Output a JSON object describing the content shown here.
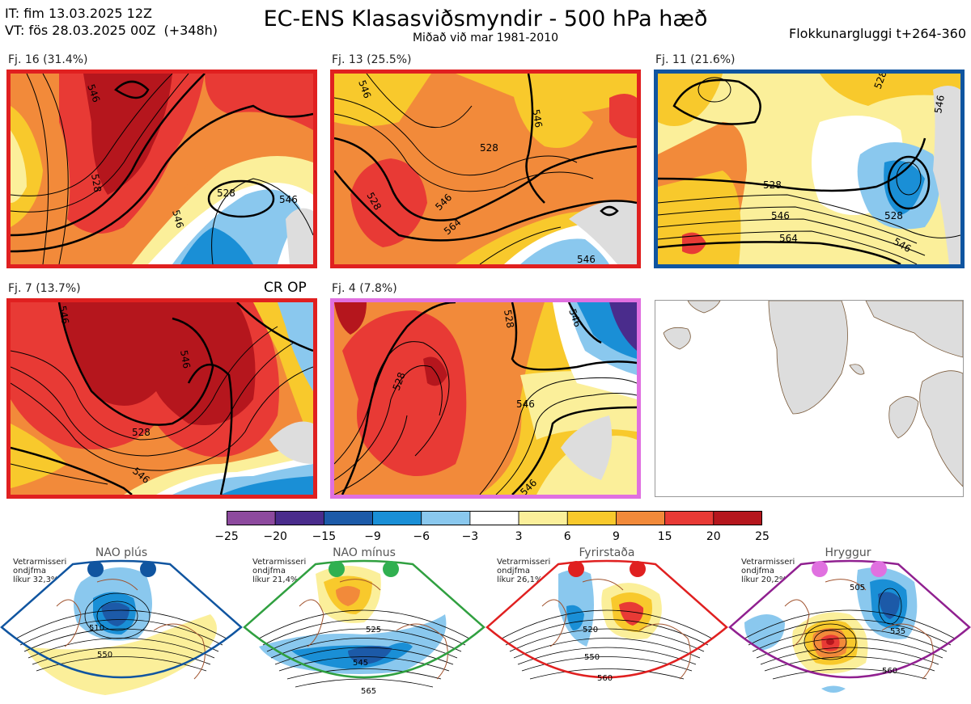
{
  "header": {
    "it_line": "IT: fim 13.03.2025 12Z",
    "vt_line": "VT: fös 28.03.2025 00Z  (+348h)",
    "title": "EC-ENS Klasasviðsmyndir - 500 hPa hæð",
    "subtitle": "Miðað við mar 1981-2010",
    "window": "Flokkunargluggi t+264-360"
  },
  "clusters": [
    {
      "label": "Fj. 16 (31.4%)",
      "border": "#e02020",
      "contours": [
        "546",
        "528",
        "546",
        "528",
        "546"
      ]
    },
    {
      "label": "Fj. 13 (25.5%)",
      "border": "#e02020",
      "contours": [
        "546",
        "528",
        "528",
        "546",
        "564",
        "546",
        "546"
      ]
    },
    {
      "label": "Fj. 11 (21.6%)",
      "border": "#1055a0",
      "contours": [
        "528",
        "528",
        "546",
        "564",
        "528",
        "546",
        "546"
      ]
    },
    {
      "label": "Fj. 7 (13.7%)",
      "border": "#e02020",
      "contours": [
        "546",
        "528",
        "546",
        "546"
      ]
    },
    {
      "label": "Fj. 4 (7.8%)",
      "border": "#e060e0",
      "contours": [
        "528",
        "528",
        "546",
        "546",
        "546"
      ]
    }
  ],
  "cr_op": "CR OP",
  "colorbar": {
    "ticks": [
      "−25",
      "−20",
      "−15",
      "−9",
      "−6",
      "−3",
      "3",
      "6",
      "9",
      "15",
      "20",
      "25"
    ],
    "colors": [
      "#8d4a9e",
      "#4a2c8c",
      "#1c5aa8",
      "#1a8fd6",
      "#8ac8ee",
      "#ffffff",
      "#fbef9a",
      "#f8c92c",
      "#f28a3a",
      "#e83a35",
      "#b5161d"
    ]
  },
  "regimes": [
    {
      "title": "NAO plús",
      "note": [
        "Vetrarmisseri",
        "ondjfma",
        "líkur 32,3%"
      ],
      "color": "#1055a0",
      "dot": "#1055a0",
      "contours": [
        "510",
        "550"
      ]
    },
    {
      "title": "NAO mínus",
      "note": [
        "Vetrarmisseri",
        "ondjfma",
        "líkur 21,4%"
      ],
      "color": "#30a040",
      "dot": "#30b050",
      "contours": [
        "525",
        "545",
        "565"
      ]
    },
    {
      "title": "Fyrirstaða",
      "note": [
        "Vetrarmisseri",
        "ondjfma",
        "líkur 26,1%"
      ],
      "color": "#e02020",
      "dot": "#e02020",
      "contours": [
        "520",
        "550",
        "560"
      ]
    },
    {
      "title": "Hryggur",
      "note": [
        "Vetrarmisseri",
        "ondjfma",
        "líkur 20,2%"
      ],
      "color": "#902090",
      "dot": "#e070e0",
      "contours": [
        "505",
        "535",
        "560"
      ]
    }
  ]
}
